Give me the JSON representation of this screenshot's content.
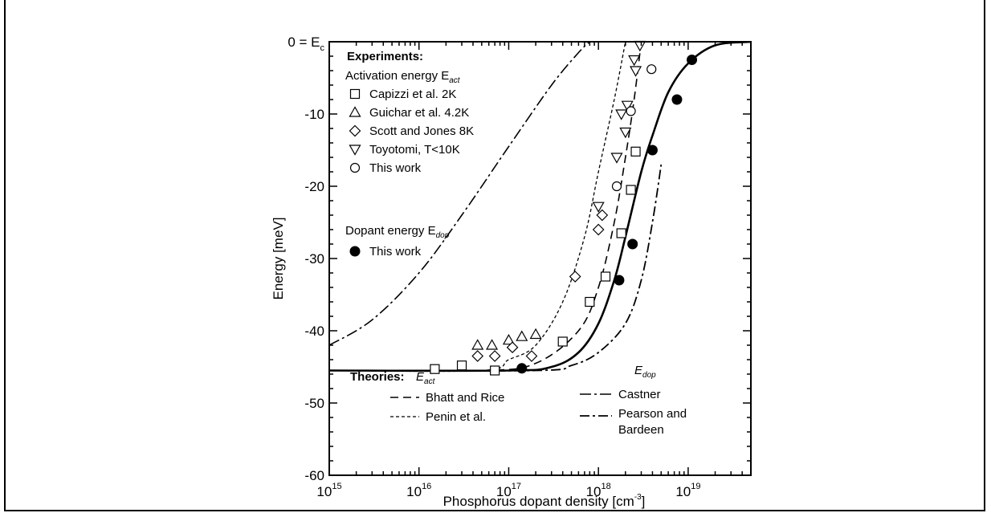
{
  "chart_data": {
    "type": "scatter",
    "xlabel": "Phosphorus dopant density [cm",
    "xlabel_sup": "-3",
    "xlabel_end": "]",
    "ylabel": "Energy [meV]",
    "xscale": "log",
    "xlim": [
      1000000000000000.0,
      5e+19
    ],
    "ylim": [
      -60,
      0
    ],
    "x_ticks": [
      {
        "base": "10",
        "exp": "15",
        "value": 1000000000000000.0
      },
      {
        "base": "10",
        "exp": "16",
        "value": 1e+16
      },
      {
        "base": "10",
        "exp": "17",
        "value": 1e+17
      },
      {
        "base": "10",
        "exp": "18",
        "value": 1e+18
      },
      {
        "base": "10",
        "exp": "19",
        "value": 1e+19
      }
    ],
    "y_ticks": [
      {
        "label": "0 = E",
        "sub": "c",
        "value": 0
      },
      {
        "label": "-10",
        "value": -10
      },
      {
        "label": "-20",
        "value": -20
      },
      {
        "label": "-30",
        "value": -30
      },
      {
        "label": "-40",
        "value": -40
      },
      {
        "label": "-50",
        "value": -50
      },
      {
        "label": "-60",
        "value": -60
      }
    ],
    "legend": {
      "experiments_title": "Experiments:",
      "activation_label": "Activation energy E",
      "activation_sub": "act",
      "entries": [
        "Capizzi et al. 2K",
        "Guichar et al. 4.2K",
        "Scott and Jones 8K",
        "Toyotomi, T<10K",
        "This work"
      ],
      "dopant_label": "Dopant energy E",
      "dopant_sub": "dop",
      "dopant_entry": "This work",
      "theories_title": "Theories:",
      "theories_eact": "E",
      "theories_eact_sub": "act",
      "theories_edop": "E",
      "theories_edop_sub": "dop",
      "bhatt": "Bhatt and Rice",
      "penin": "Penin et al.",
      "castner": "Castner",
      "pearson1": "Pearson and",
      "pearson2": "Bardeen"
    },
    "series": [
      {
        "name": "Capizzi et al. 2K",
        "marker": "square",
        "points": [
          [
            1.5e+16,
            -45.3
          ],
          [
            3e+16,
            -44.8
          ],
          [
            7e+16,
            -45.5
          ],
          [
            4e+17,
            -41.5
          ],
          [
            8e+17,
            -36
          ],
          [
            1.2e+18,
            -32.5
          ],
          [
            1.8e+18,
            -26.5
          ],
          [
            2.3e+18,
            -20.5
          ],
          [
            2.6e+18,
            -15.2
          ]
        ]
      },
      {
        "name": "Guichar et al. 4.2K",
        "marker": "triangle",
        "points": [
          [
            4.5e+16,
            -42
          ],
          [
            6.5e+16,
            -42
          ],
          [
            1e+17,
            -41.3
          ],
          [
            1.4e+17,
            -40.8
          ],
          [
            2e+17,
            -40.5
          ]
        ]
      },
      {
        "name": "Scott and Jones 8K",
        "marker": "diamond",
        "points": [
          [
            4.5e+16,
            -43.5
          ],
          [
            7e+16,
            -43.5
          ],
          [
            1.1e+17,
            -42.3
          ],
          [
            1.8e+17,
            -43.5
          ],
          [
            5.5e+17,
            -32.5
          ],
          [
            1e+18,
            -26
          ],
          [
            1.1e+18,
            -24
          ]
        ]
      },
      {
        "name": "Toyotomi, T<10K",
        "marker": "triangle-down",
        "points": [
          [
            1e+18,
            -22.8
          ],
          [
            1.6e+18,
            -16
          ],
          [
            1.8e+18,
            -10
          ],
          [
            2e+18,
            -12.5
          ],
          [
            2.1e+18,
            -8.8
          ],
          [
            2.5e+18,
            -2.5
          ],
          [
            2.6e+18,
            -4
          ],
          [
            2.9e+18,
            -0.5
          ]
        ]
      },
      {
        "name": "This work",
        "marker": "circle",
        "points": [
          [
            1.6e+18,
            -20
          ],
          [
            2.3e+18,
            -9.6
          ],
          [
            3.9e+18,
            -3.8
          ]
        ]
      },
      {
        "name": "This work",
        "marker": "filled-circle",
        "points": [
          [
            1.4e+17,
            -45.2
          ],
          [
            1.7e+18,
            -33
          ],
          [
            2.4e+18,
            -28
          ],
          [
            4e+18,
            -15
          ],
          [
            7.5e+18,
            -8
          ],
          [
            1.1e+19,
            -2.5
          ]
        ]
      }
    ],
    "curves": [
      {
        "name": "Bhatt and Rice",
        "dash": "10,6",
        "width": 1.6,
        "points": [
          [
            1000000000000000.0,
            -45.5
          ],
          [
            5e+16,
            -45.5
          ],
          [
            2e+17,
            -44.5
          ],
          [
            6e+17,
            -40
          ],
          [
            1e+18,
            -34
          ],
          [
            1.5e+18,
            -25
          ],
          [
            2e+18,
            -16
          ],
          [
            2.5e+18,
            -8
          ],
          [
            3e+18,
            0
          ]
        ]
      },
      {
        "name": "Penin et al.",
        "dash": "4,3",
        "width": 1.3,
        "points": [
          [
            1000000000000000.0,
            -45.5
          ],
          [
            5e+16,
            -45.5
          ],
          [
            1e+17,
            -44
          ],
          [
            2e+17,
            -42
          ],
          [
            4e+17,
            -36
          ],
          [
            7e+17,
            -27
          ],
          [
            1e+18,
            -18
          ],
          [
            1.5e+18,
            -8
          ],
          [
            2e+18,
            0
          ]
        ]
      },
      {
        "name": "Castner",
        "dash": "14,4,3,4",
        "width": 1.6,
        "points": [
          [
            1000000000000000.0,
            -42
          ],
          [
            3000000000000000.0,
            -38.5
          ],
          [
            1e+16,
            -32
          ],
          [
            3e+16,
            -24
          ],
          [
            1e+17,
            -14.5
          ],
          [
            3e+17,
            -6
          ],
          [
            6e+17,
            -1.5
          ],
          [
            8e+17,
            0
          ]
        ]
      },
      {
        "name": "Pearson and Bardeen",
        "dash": "12,4,3,4",
        "width": 1.8,
        "points": [
          [
            1000000000000000.0,
            -45.5
          ],
          [
            2e+17,
            -45.5
          ],
          [
            5e+17,
            -44.8
          ],
          [
            1e+18,
            -43
          ],
          [
            2e+18,
            -39
          ],
          [
            3e+18,
            -33
          ],
          [
            4e+18,
            -25
          ],
          [
            5e+18,
            -17
          ]
        ]
      },
      {
        "name": "",
        "dash": "",
        "width": 2.6,
        "points": [
          [
            1000000000000000.0,
            -45.5
          ],
          [
            1e+17,
            -45.5
          ],
          [
            3e+17,
            -45
          ],
          [
            6e+17,
            -43
          ],
          [
            1e+18,
            -39
          ],
          [
            1.5e+18,
            -33
          ],
          [
            2e+18,
            -27
          ],
          [
            3e+18,
            -18
          ],
          [
            4e+18,
            -13
          ],
          [
            6e+18,
            -7
          ],
          [
            1e+19,
            -3
          ],
          [
            2e+19,
            -0.5
          ],
          [
            5e+19,
            0
          ]
        ]
      }
    ]
  }
}
